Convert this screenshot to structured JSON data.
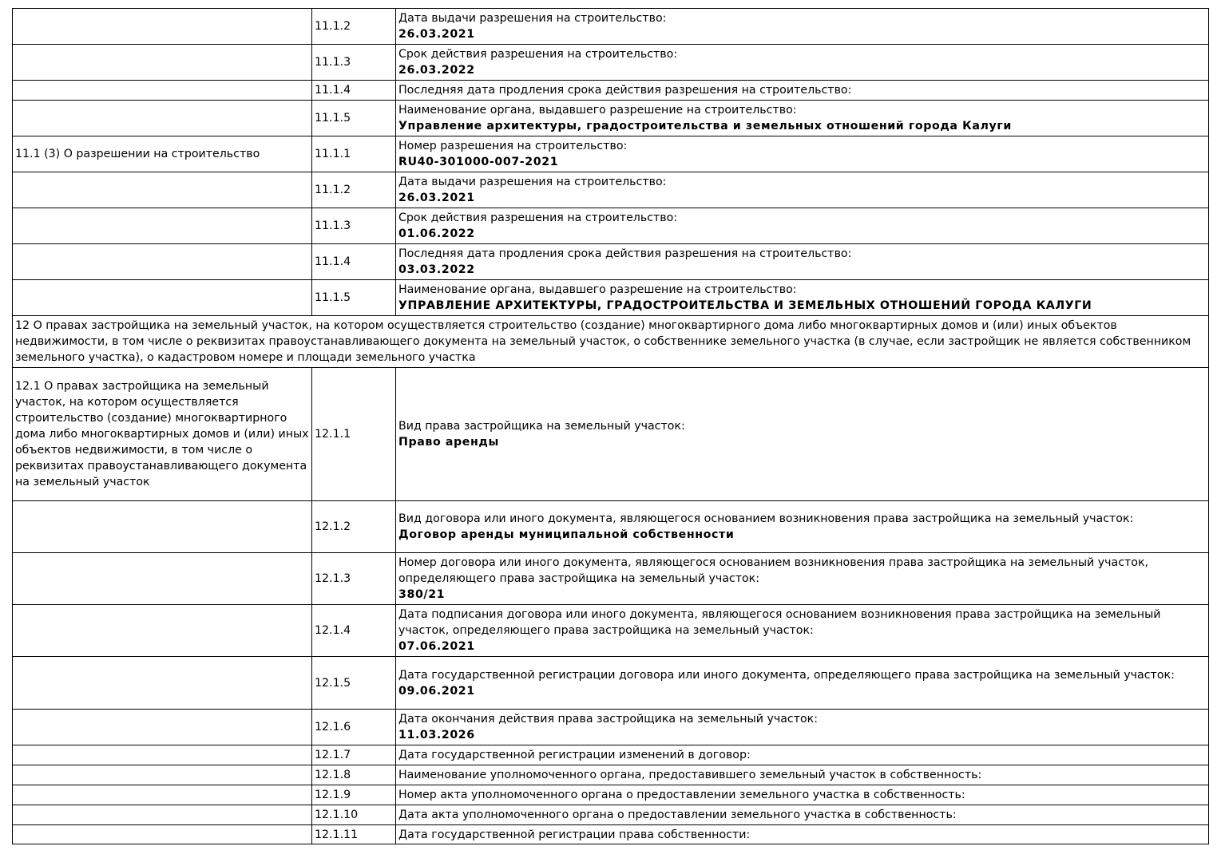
{
  "rows": [
    {
      "section": "",
      "code": "11.1.2",
      "label": "Дата выдачи разрешения на строительство:",
      "value": "26.03.2021"
    },
    {
      "section": "",
      "code": "11.1.3",
      "label": "Срок действия разрешения на строительство:",
      "value": "26.03.2022"
    },
    {
      "section": "",
      "code": "11.1.4",
      "label": "Последняя дата продления срока действия разрешения на строительство:",
      "value": ""
    },
    {
      "section": "",
      "code": "11.1.5",
      "label": "Наименование органа, выдавшего разрешение на строительство:",
      "value": "Управление архитектуры, градостроительства и земельных отношений города Калуги"
    },
    {
      "section": "11.1 (3) О разрешении на строительство",
      "code": "11.1.1",
      "label": "Номер разрешения на строительство:",
      "value": "RU40-301000-007-2021"
    },
    {
      "section": "",
      "code": "11.1.2",
      "label": "Дата выдачи разрешения на строительство:",
      "value": "26.03.2021"
    },
    {
      "section": "",
      "code": "11.1.3",
      "label": "Срок действия разрешения на строительство:",
      "value": "01.06.2022"
    },
    {
      "section": "",
      "code": "11.1.4",
      "label": "Последняя дата продления срока действия разрешения на строительство:",
      "value": "03.03.2022"
    },
    {
      "section": "",
      "code": "11.1.5",
      "label": "Наименование органа, выдавшего разрешение на строительство:",
      "value": "УПРАВЛЕНИЕ АРХИТЕКТУРЫ, ГРАДОСТРОИТЕЛЬСТВА И ЗЕМЕЛЬНЫХ ОТНОШЕНИЙ ГОРОДА КАЛУГИ"
    },
    {
      "heading": "12 О правах застройщика на земельный участок, на котором осуществляется строительство (создание) многоквартирного дома либо многоквартирных домов и (или) иных объектов недвижимости, в том числе о реквизитах правоустанавливающего документа на земельный участок, о собственнике земельного участка (в случае, если застройщик не является собственником земельного участка), о кадастровом номере и площади земельного участка"
    },
    {
      "section": "12.1 О правах застройщика на земельный участок, на котором осуществляется строительство (создание) многоквартирного дома либо многоквартирных домов и (или) иных объектов недвижимости, в том числе о реквизитах правоустанавливающего документа на земельный участок",
      "code": "12.1.1",
      "label": "Вид права застройщика на земельный участок:",
      "value": "Право аренды"
    },
    {
      "section": "",
      "code": "12.1.2",
      "label": "Вид договора или иного документа, являющегося основанием возникновения права застройщика на земельный участок:",
      "value": "Договор аренды муниципальной собственности"
    },
    {
      "section": "",
      "code": "12.1.3",
      "label": "Номер договора или иного документа, являющегося основанием возникновения права застройщика на земельный участок, определяющего права застройщика на земельный участок:",
      "value": "380/21"
    },
    {
      "section": "",
      "code": "12.1.4",
      "label": "Дата подписания договора или иного документа, являющегося основанием возникновения права застройщика на земельный участок, определяющего права застройщика на земельный участок:",
      "value": "07.06.2021"
    },
    {
      "section": "",
      "code": "12.1.5",
      "label": "Дата государственной регистрации договора или иного документа, определяющего права застройщика на земельный участок:",
      "value": "09.06.2021"
    },
    {
      "section": "",
      "code": "12.1.6",
      "label": "Дата окончания действия права застройщика на земельный участок:",
      "value": "11.03.2026"
    },
    {
      "section": "",
      "code": "12.1.7",
      "label": "Дата государственной регистрации изменений в договор:",
      "value": ""
    },
    {
      "section": "",
      "code": "12.1.8",
      "label": "Наименование уполномоченного органа, предоставившего земельный участок в собственность:",
      "value": ""
    },
    {
      "section": "",
      "code": "12.1.9",
      "label": "Номер акта уполномоченного органа о предоставлении земельного участка в собственность:",
      "value": ""
    },
    {
      "section": "",
      "code": "12.1.10",
      "label": "Дата акта уполномоченного органа о предоставлении земельного участка в собственность:",
      "value": ""
    },
    {
      "section": "",
      "code": "12.1.11",
      "label": "Дата государственной регистрации права собственности:",
      "value": ""
    }
  ]
}
